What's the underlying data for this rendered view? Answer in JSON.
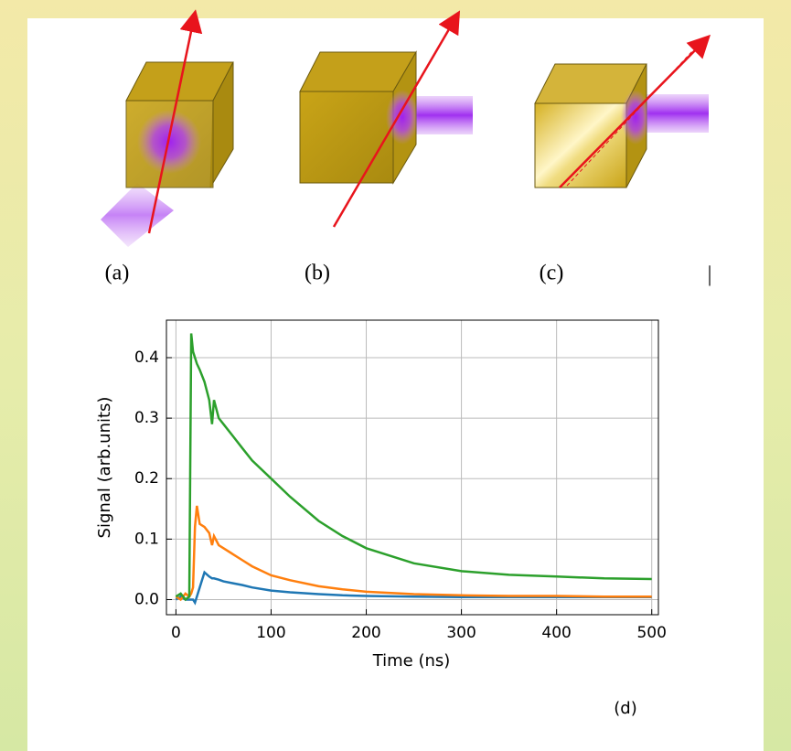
{
  "figure": {
    "panel_labels": [
      "(a)",
      "(b)",
      "(c)"
    ],
    "separator": "|"
  },
  "chart_data": {
    "type": "line",
    "xlabel": "Time (ns)",
    "ylabel": "Signal (arb.units)",
    "panel_label": "(d)",
    "x": [
      0,
      5,
      10,
      14,
      16,
      18,
      20,
      22,
      25,
      30,
      35,
      38,
      40,
      45,
      50,
      60,
      70,
      80,
      100,
      120,
      150,
      175,
      200,
      250,
      300,
      350,
      400,
      450,
      500
    ],
    "series": [
      {
        "color": "#1f77b4",
        "values": [
          0.0,
          0.005,
          0.0,
          0.0,
          0.0,
          0.0,
          -0.005,
          0.005,
          0.02,
          0.045,
          0.038,
          0.035,
          0.035,
          0.033,
          0.03,
          0.027,
          0.024,
          0.02,
          0.015,
          0.012,
          0.009,
          0.007,
          0.006,
          0.005,
          0.004,
          0.004,
          0.004,
          0.004,
          0.004
        ]
      },
      {
        "color": "#ff7f0e",
        "values": [
          0.005,
          0.0,
          0.01,
          0.005,
          0.01,
          0.02,
          0.12,
          0.155,
          0.125,
          0.12,
          0.11,
          0.09,
          0.105,
          0.09,
          0.085,
          0.075,
          0.065,
          0.055,
          0.04,
          0.032,
          0.022,
          0.017,
          0.013,
          0.009,
          0.007,
          0.006,
          0.006,
          0.005,
          0.005
        ]
      },
      {
        "color": "#2ca02c",
        "values": [
          0.005,
          0.01,
          0.0,
          0.005,
          0.44,
          0.41,
          0.4,
          0.39,
          0.38,
          0.36,
          0.33,
          0.29,
          0.33,
          0.3,
          0.29,
          0.27,
          0.25,
          0.23,
          0.2,
          0.17,
          0.13,
          0.105,
          0.085,
          0.06,
          0.047,
          0.041,
          0.038,
          0.035,
          0.034
        ]
      }
    ],
    "xlim": [
      -10,
      507
    ],
    "ylim": [
      -0.025,
      0.462
    ],
    "xticks": [
      0,
      100,
      200,
      300,
      400,
      500
    ],
    "yticks": [
      {
        "value": 0,
        "label": "0.0"
      },
      0.1,
      0.2,
      0.3,
      0.4
    ],
    "grid": true
  }
}
